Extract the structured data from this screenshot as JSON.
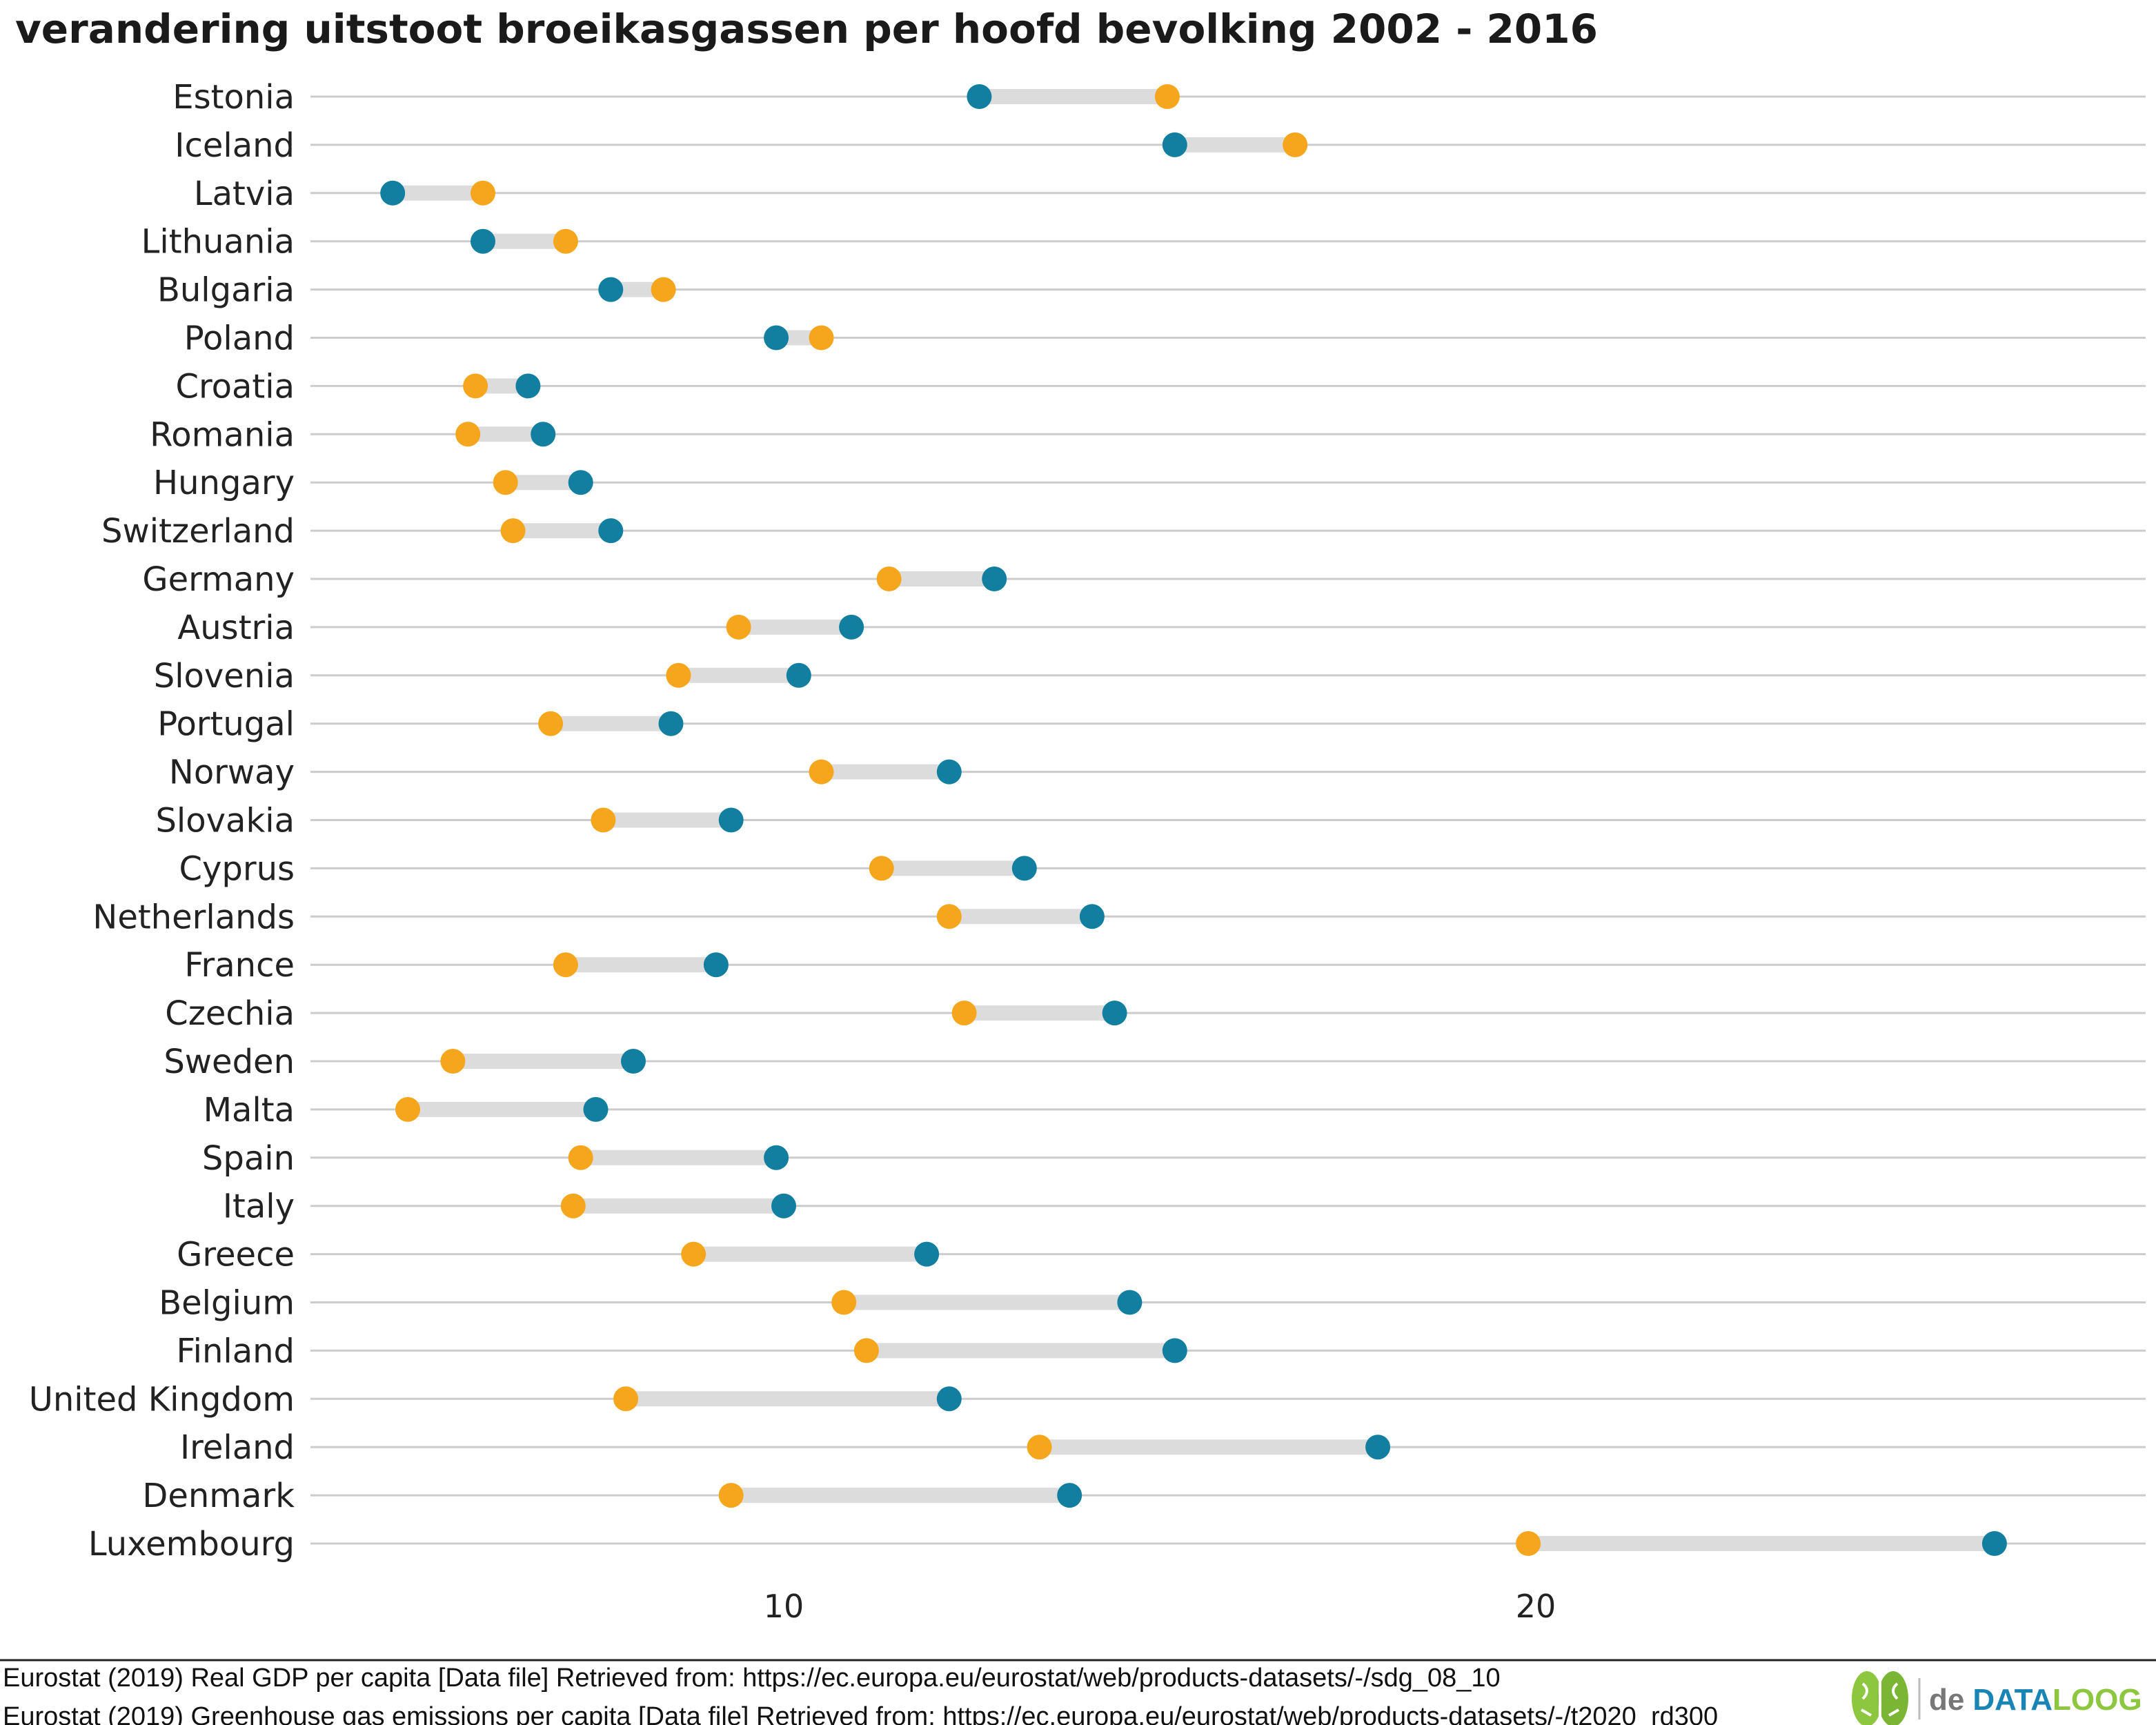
{
  "chart_data": {
    "type": "dumbbell",
    "title": "verandering uitstoot broeikasgassen per hoofd bevolking 2002 - 2016",
    "xlabel": "",
    "ylabel": "",
    "xlim": [
      3.7,
      26.4
    ],
    "xticks": [
      10,
      20
    ],
    "grid": true,
    "colors": {
      "start": "#127fa0",
      "end": "#f6a61d",
      "segment": "#dcdcdc",
      "gridline": "#cccccc"
    },
    "rows": [
      {
        "country": "Estonia",
        "start": 12.6,
        "end": 15.1
      },
      {
        "country": "Iceland",
        "start": 15.2,
        "end": 16.8
      },
      {
        "country": "Latvia",
        "start": 4.8,
        "end": 6.0
      },
      {
        "country": "Lithuania",
        "start": 6.0,
        "end": 7.1
      },
      {
        "country": "Bulgaria",
        "start": 7.7,
        "end": 8.4
      },
      {
        "country": "Poland",
        "start": 9.9,
        "end": 10.5
      },
      {
        "country": "Croatia",
        "start": 6.6,
        "end": 5.9
      },
      {
        "country": "Romania",
        "start": 6.8,
        "end": 5.8
      },
      {
        "country": "Hungary",
        "start": 7.3,
        "end": 6.3
      },
      {
        "country": "Switzerland",
        "start": 7.7,
        "end": 6.4
      },
      {
        "country": "Germany",
        "start": 12.8,
        "end": 11.4
      },
      {
        "country": "Austria",
        "start": 10.9,
        "end": 9.4
      },
      {
        "country": "Slovenia",
        "start": 10.2,
        "end": 8.6
      },
      {
        "country": "Portugal",
        "start": 8.5,
        "end": 6.9
      },
      {
        "country": "Norway",
        "start": 12.2,
        "end": 10.5
      },
      {
        "country": "Slovakia",
        "start": 9.3,
        "end": 7.6
      },
      {
        "country": "Cyprus",
        "start": 13.2,
        "end": 11.3
      },
      {
        "country": "Netherlands",
        "start": 14.1,
        "end": 12.2
      },
      {
        "country": "France",
        "start": 9.1,
        "end": 7.1
      },
      {
        "country": "Czechia",
        "start": 14.4,
        "end": 12.4
      },
      {
        "country": "Sweden",
        "start": 8.0,
        "end": 5.6
      },
      {
        "country": "Malta",
        "start": 7.5,
        "end": 5.0
      },
      {
        "country": "Spain",
        "start": 9.9,
        "end": 7.3
      },
      {
        "country": "Italy",
        "start": 10.0,
        "end": 7.2
      },
      {
        "country": "Greece",
        "start": 11.9,
        "end": 8.8
      },
      {
        "country": "Belgium",
        "start": 14.6,
        "end": 10.8
      },
      {
        "country": "Finland",
        "start": 15.2,
        "end": 11.1
      },
      {
        "country": "United Kingdom",
        "start": 12.2,
        "end": 7.9
      },
      {
        "country": "Ireland",
        "start": 17.9,
        "end": 13.4
      },
      {
        "country": "Denmark",
        "start": 13.8,
        "end": 9.3
      },
      {
        "country": "Luxembourg",
        "start": 26.1,
        "end": 19.9
      }
    ]
  },
  "captions": [
    "Eurostat (2019) Real GDP per capita [Data file] Retrieved from: https://ec.europa.eu/eurostat/web/products-datasets/-/sdg_08_10",
    "Eurostat (2019) Greenhouse gas emissions per capita [Data file] Retrieved from: https://ec.europa.eu/eurostat/web/products-datasets/-/t2020_rd300"
  ],
  "logo": {
    "prefix": "de",
    "brand_blue": "DATA",
    "brand_green": "LOOG",
    "icon": "brain-icon",
    "colors": {
      "text": "#777777",
      "blue": "#1a85b5",
      "green": "#8dc63f"
    }
  }
}
